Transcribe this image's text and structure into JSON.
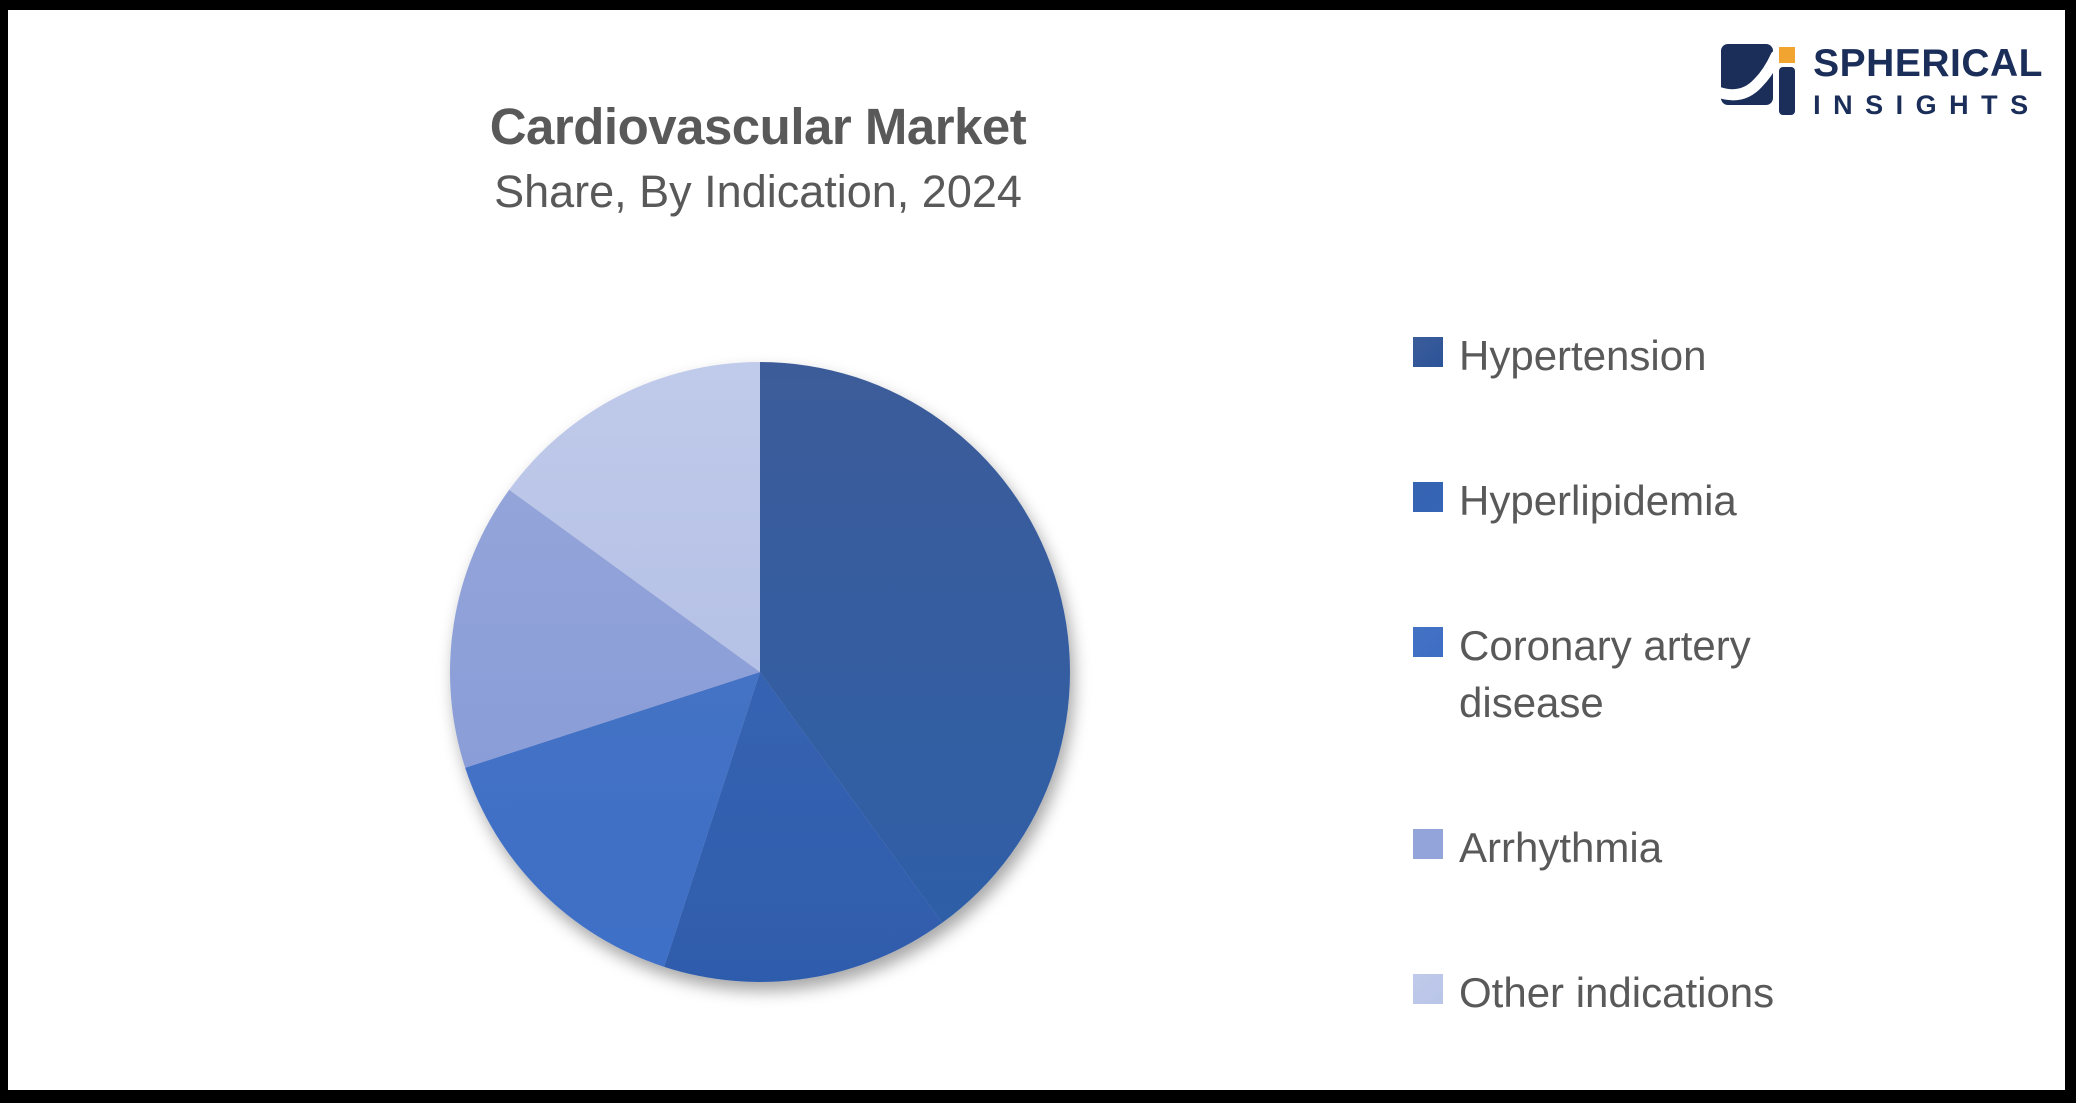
{
  "frame": {
    "border_color": "#000000",
    "background": "#ffffff"
  },
  "header": {
    "title_line1": "Cardiovascular Market",
    "title_line2": "Share, By Indication, 2024",
    "title_color": "#595959"
  },
  "brand": {
    "name_top": "SPHERICAL",
    "name_bottom": "INSIGHTS",
    "navy": "#1A2E59",
    "orange": "#F2A431"
  },
  "chart_data": {
    "type": "pie",
    "title": "Cardiovascular Market",
    "subtitle": "Share, By Indication, 2024",
    "year": "2024",
    "categories": [
      "Hypertension",
      "Hyperlipidemia",
      "Coronary artery disease",
      "Arrhythmia",
      "Other indications"
    ],
    "values": [
      40,
      15,
      15,
      15,
      15
    ],
    "unit": "percent",
    "start_angle_deg": 0,
    "direction": "clockwise",
    "legend_position": "right",
    "data_labels": false,
    "slice_colors_top": [
      "#3C5C99",
      "#3663B2",
      "#4472C4",
      "#93A4D9",
      "#C0CAEA"
    ],
    "slice_colors_bottom": [
      "#2E5EA7",
      "#2F5CAC",
      "#3E6FC7",
      "#8A9DD8",
      "#B5C1E6"
    ]
  },
  "legend": {
    "text_color": "#595959",
    "items": [
      {
        "label": "Hypertension",
        "color": "#2B5499"
      },
      {
        "label": "Hyperlipidemia",
        "color": "#3565B5"
      },
      {
        "label": "Coronary artery disease",
        "color": "#3E6DC5"
      },
      {
        "label": "Arrhythmia",
        "color": "#93A4DB"
      },
      {
        "label": "Other indications",
        "color": "#B9C5E8"
      }
    ]
  }
}
